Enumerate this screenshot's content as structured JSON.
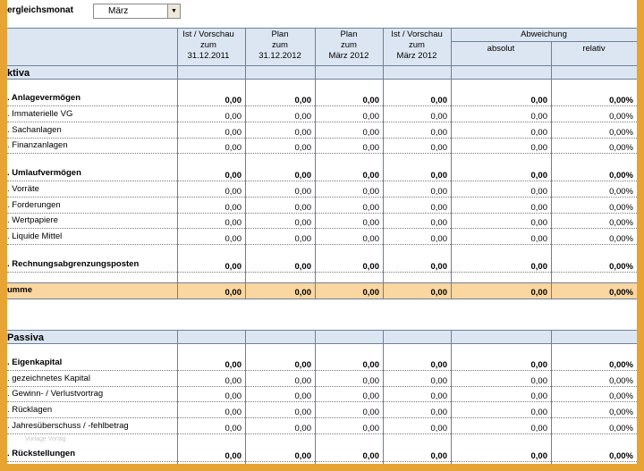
{
  "selector": {
    "label": "ergleichsmonat",
    "value": "März"
  },
  "headers": {
    "col1": [
      "Ist / Vorschau",
      "zum",
      "31.12.2011"
    ],
    "col2": [
      "Plan",
      "zum",
      "31.12.2012"
    ],
    "col3": [
      "Plan",
      "zum",
      "März 2012"
    ],
    "col4": [
      "Ist / Vorschau",
      "zum",
      "März 2012"
    ],
    "abweichung": "Abweichung",
    "absolut": "absolut",
    "relativ": "relativ"
  },
  "rows": [
    {
      "label": "ktiva",
      "type": "section",
      "top": 74
    },
    {
      "label": ". Anlagevermögen",
      "type": "group",
      "top": 104,
      "values": [
        "0,00",
        "0,00",
        "0,00",
        "0,00",
        "0,00",
        "0,00%"
      ]
    },
    {
      "label": ". Immaterielle VG",
      "type": "item",
      "top": 122,
      "values": [
        "0,00",
        "0,00",
        "0,00",
        "0,00",
        "0,00",
        "0,00%"
      ]
    },
    {
      "label": ". Sachanlagen",
      "type": "item",
      "top": 140,
      "values": [
        "0,00",
        "0,00",
        "0,00",
        "0,00",
        "0,00",
        "0,00%"
      ]
    },
    {
      "label": ". Finanzanlagen",
      "type": "item",
      "top": 157,
      "values": [
        "0,00",
        "0,00",
        "0,00",
        "0,00",
        "0,00",
        "0,00%"
      ]
    },
    {
      "label": ". Umlaufvermögen",
      "type": "group",
      "top": 188,
      "values": [
        "0,00",
        "0,00",
        "0,00",
        "0,00",
        "0,00",
        "0,00%"
      ]
    },
    {
      "label": ". Vorräte",
      "type": "item",
      "top": 206,
      "values": [
        "0,00",
        "0,00",
        "0,00",
        "0,00",
        "0,00",
        "0,00%"
      ]
    },
    {
      "label": ". Forderungen",
      "type": "item",
      "top": 224,
      "values": [
        "0,00",
        "0,00",
        "0,00",
        "0,00",
        "0,00",
        "0,00%"
      ]
    },
    {
      "label": ". Wertpapiere",
      "type": "item",
      "top": 241,
      "values": [
        "0,00",
        "0,00",
        "0,00",
        "0,00",
        "0,00",
        "0,00%"
      ]
    },
    {
      "label": ". Liquide Mittel",
      "type": "item",
      "top": 259,
      "values": [
        "0,00",
        "0,00",
        "0,00",
        "0,00",
        "0,00",
        "0,00%"
      ]
    },
    {
      "label": ". Rechnungsabgrenzungsposten",
      "type": "group",
      "top": 290,
      "values": [
        "0,00",
        "0,00",
        "0,00",
        "0,00",
        "0,00",
        "0,00%"
      ]
    },
    {
      "label": "umme",
      "type": "total",
      "top": 319,
      "values": [
        "0,00",
        "0,00",
        "0,00",
        "0,00",
        "0,00",
        "0,00%"
      ]
    },
    {
      "label": "Passiva",
      "type": "section",
      "top": 370
    },
    {
      "label": ". Eigenkapital",
      "type": "group",
      "top": 400,
      "values": [
        "0,00",
        "0,00",
        "0,00",
        "0,00",
        "0,00",
        "0,00%"
      ]
    },
    {
      "label": ". gezeichnetes Kapital",
      "type": "item",
      "top": 418,
      "values": [
        "0,00",
        "0,00",
        "0,00",
        "0,00",
        "0,00",
        "0,00%"
      ]
    },
    {
      "label": ". Gewinn- / Verlustvortrag",
      "type": "item",
      "top": 435,
      "values": [
        "0,00",
        "0,00",
        "0,00",
        "0,00",
        "0,00",
        "0,00%"
      ]
    },
    {
      "label": ". Rücklagen",
      "type": "item",
      "top": 453,
      "values": [
        "0,00",
        "0,00",
        "0,00",
        "0,00",
        "0,00",
        "0,00%"
      ]
    },
    {
      "label": ". Jahresüberschuss / -fehlbetrag",
      "type": "item",
      "top": 471,
      "values": [
        "0,00",
        "0,00",
        "0,00",
        "0,00",
        "0,00",
        "0,00%"
      ]
    },
    {
      "label": ". Rückstellungen",
      "type": "group",
      "top": 502,
      "values": [
        "0,00",
        "0,00",
        "0,00",
        "0,00",
        "0,00",
        "0,00%"
      ]
    }
  ],
  "watermark": "Vorlage Vorlag"
}
